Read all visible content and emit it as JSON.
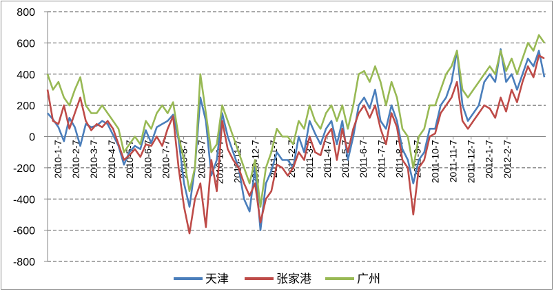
{
  "chart_data": {
    "type": "line",
    "title": "",
    "xlabel": "",
    "ylabel": "",
    "ylim": [
      -800,
      800
    ],
    "yticks": [
      800,
      600,
      400,
      200,
      0,
      -200,
      -400,
      -600,
      -800
    ],
    "grid": "horizontal-dashed",
    "legend_position": "bottom",
    "x_tick_labels": [
      "2010-1-7",
      "2010-2-7",
      "2010-3-7",
      "2010-4-7",
      "2010-5-7",
      "2010-6-7",
      "2010-7-7",
      "2010-8-7",
      "2010-9-7",
      "2010-10-7",
      "2010-11-7",
      "2010-12-7",
      "2011-1-7",
      "2011-2-7",
      "2011-3-7",
      "2011-4-7",
      "2011-5-7",
      "2011-6-7",
      "2011-7-7",
      "2011-8-7",
      "2011-9-7",
      "2011-10-7",
      "2011-11-7",
      "2011-12-7",
      "2012-1-7",
      "2012-2-7"
    ],
    "series": [
      {
        "name": "天津",
        "color": "#4a7ebb",
        "values": [
          150,
          110,
          60,
          -30,
          120,
          60,
          -60,
          80,
          60,
          70,
          100,
          80,
          10,
          -60,
          -180,
          -100,
          -60,
          -80,
          40,
          -40,
          60,
          80,
          100,
          140,
          -20,
          -300,
          -450,
          -200,
          250,
          100,
          -250,
          -150,
          150,
          0,
          -100,
          -200,
          -400,
          -480,
          -200,
          -600,
          -300,
          -220,
          -100,
          -150,
          -150,
          -200,
          0,
          -100,
          100,
          20,
          -50,
          50,
          100,
          -50,
          100,
          -150,
          0,
          200,
          250,
          180,
          300,
          100,
          50,
          200,
          100,
          -80,
          -150,
          -300,
          -150,
          -100,
          50,
          50,
          200,
          250,
          350,
          550,
          200,
          100,
          150,
          200,
          350,
          400,
          350,
          560,
          350,
          400,
          300,
          400,
          500,
          450,
          550,
          380
        ]
      },
      {
        "name": "张家港",
        "color": "#be4b48",
        "values": [
          300,
          100,
          80,
          200,
          50,
          150,
          250,
          100,
          40,
          80,
          60,
          100,
          50,
          -50,
          -150,
          -120,
          -80,
          -130,
          -50,
          -60,
          0,
          -60,
          50,
          130,
          -200,
          -450,
          -620,
          -400,
          -300,
          -580,
          -150,
          -350,
          100,
          -80,
          -150,
          -200,
          -300,
          -380,
          -300,
          -550,
          -400,
          -350,
          -180,
          -200,
          -250,
          -200,
          -100,
          -150,
          0,
          -100,
          -120,
          0,
          50,
          -150,
          50,
          -100,
          50,
          150,
          200,
          120,
          200,
          50,
          -50,
          150,
          60,
          -150,
          -200,
          -500,
          -200,
          -150,
          0,
          20,
          150,
          200,
          250,
          350,
          100,
          50,
          100,
          150,
          200,
          180,
          120,
          250,
          160,
          300,
          220,
          350,
          450,
          380,
          520,
          500
        ]
      },
      {
        "name": "广州",
        "color": "#98b954",
        "values": [
          400,
          300,
          350,
          250,
          200,
          300,
          380,
          200,
          150,
          150,
          200,
          150,
          100,
          50,
          -100,
          -50,
          0,
          -50,
          100,
          50,
          150,
          200,
          150,
          220,
          0,
          -150,
          -350,
          -200,
          400,
          150,
          -100,
          -50,
          200,
          100,
          0,
          -100,
          -200,
          -300,
          -150,
          -450,
          -200,
          -100,
          50,
          0,
          0,
          -50,
          100,
          50,
          200,
          100,
          50,
          150,
          200,
          100,
          200,
          50,
          200,
          400,
          420,
          350,
          450,
          350,
          200,
          350,
          250,
          50,
          0,
          -200,
          0,
          50,
          200,
          200,
          300,
          400,
          450,
          550,
          300,
          250,
          300,
          350,
          400,
          450,
          400,
          550,
          420,
          500,
          400,
          500,
          600,
          550,
          650,
          600
        ]
      }
    ]
  }
}
